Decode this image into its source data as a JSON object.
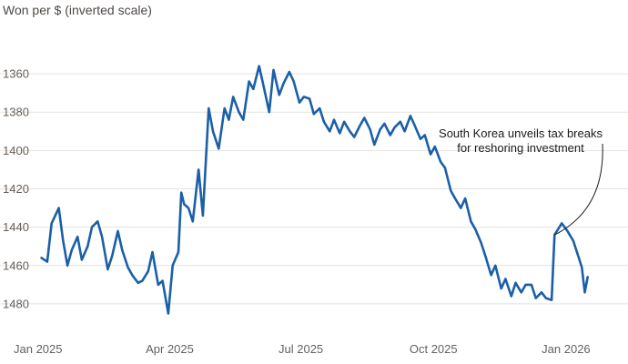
{
  "chart_data": {
    "type": "line",
    "title": "",
    "ylabel": "Won per $ (inverted scale)",
    "xlabel": "",
    "y_inverted": true,
    "ylim": [
      1350,
      1490
    ],
    "yticks": [
      1360,
      1380,
      1400,
      1420,
      1440,
      1460,
      1480
    ],
    "xlim": [
      "2025-01-01",
      "2026-01-20"
    ],
    "xticks": [
      {
        "date": "2025-01-01",
        "label": "Jan 2025"
      },
      {
        "date": "2025-04-01",
        "label": "Apr 2025"
      },
      {
        "date": "2025-07-01",
        "label": "Jul 2025"
      },
      {
        "date": "2025-10-01",
        "label": "Oct 2025"
      },
      {
        "date": "2026-01-01",
        "label": "Jan 2026"
      }
    ],
    "grid": "horizontal",
    "colors": {
      "line": "#1a5fa8",
      "grid": "#e6e2dc",
      "text": "#66605c"
    },
    "annotation": {
      "lines": [
        "South Korea unveils tax breaks",
        "for reshoring investment"
      ],
      "date": "2025-12-24",
      "value": 1444
    },
    "series": [
      {
        "x": [
          "2025-01-02",
          "2025-01-06",
          "2025-01-09",
          "2025-01-14",
          "2025-01-17",
          "2025-01-20",
          "2025-01-23",
          "2025-01-27",
          "2025-01-30",
          "2025-02-03",
          "2025-02-06",
          "2025-02-10",
          "2025-02-13",
          "2025-02-17",
          "2025-02-20",
          "2025-02-24",
          "2025-02-27",
          "2025-03-03",
          "2025-03-06",
          "2025-03-10",
          "2025-03-13",
          "2025-03-17",
          "2025-03-20",
          "2025-03-24",
          "2025-03-27",
          "2025-03-31",
          "2025-04-03",
          "2025-04-07",
          "2025-04-09",
          "2025-04-11",
          "2025-04-14",
          "2025-04-17",
          "2025-04-21",
          "2025-04-24",
          "2025-04-28",
          "2025-05-01",
          "2025-05-05",
          "2025-05-09",
          "2025-05-12",
          "2025-05-15",
          "2025-05-19",
          "2025-05-22",
          "2025-05-26",
          "2025-05-29",
          "2025-06-02",
          "2025-06-05",
          "2025-06-09",
          "2025-06-12",
          "2025-06-16",
          "2025-06-19",
          "2025-06-23",
          "2025-06-26",
          "2025-06-30",
          "2025-07-03",
          "2025-07-07",
          "2025-07-10",
          "2025-07-14",
          "2025-07-17",
          "2025-07-21",
          "2025-07-24",
          "2025-07-28",
          "2025-07-31",
          "2025-08-04",
          "2025-08-07",
          "2025-08-11",
          "2025-08-14",
          "2025-08-18",
          "2025-08-21",
          "2025-08-25",
          "2025-08-28",
          "2025-09-01",
          "2025-09-04",
          "2025-09-08",
          "2025-09-11",
          "2025-09-15",
          "2025-09-18",
          "2025-09-22",
          "2025-09-25",
          "2025-09-29",
          "2025-10-02",
          "2025-10-06",
          "2025-10-09",
          "2025-10-13",
          "2025-10-16",
          "2025-10-20",
          "2025-10-23",
          "2025-10-27",
          "2025-10-30",
          "2025-11-03",
          "2025-11-06",
          "2025-11-10",
          "2025-11-13",
          "2025-11-17",
          "2025-11-20",
          "2025-11-24",
          "2025-11-27",
          "2025-12-01",
          "2025-12-04",
          "2025-12-08",
          "2025-12-11",
          "2025-12-15",
          "2025-12-18",
          "2025-12-22",
          "2025-12-24",
          "2025-12-29",
          "2026-01-02",
          "2026-01-06",
          "2026-01-09",
          "2026-01-12",
          "2026-01-14",
          "2026-01-16"
        ],
        "y": [
          1456,
          1458,
          1438,
          1430,
          1447,
          1460,
          1452,
          1445,
          1457,
          1450,
          1440,
          1437,
          1445,
          1462,
          1455,
          1442,
          1452,
          1461,
          1465,
          1469,
          1468,
          1463,
          1453,
          1470,
          1468,
          1485,
          1460,
          1453,
          1422,
          1428,
          1430,
          1437,
          1410,
          1434,
          1378,
          1390,
          1399,
          1378,
          1384,
          1372,
          1380,
          1384,
          1364,
          1368,
          1356,
          1366,
          1380,
          1358,
          1371,
          1365,
          1359,
          1364,
          1375,
          1372,
          1373,
          1381,
          1378,
          1385,
          1390,
          1384,
          1391,
          1385,
          1390,
          1393,
          1387,
          1383,
          1389,
          1397,
          1389,
          1386,
          1392,
          1388,
          1385,
          1390,
          1382,
          1387,
          1394,
          1392,
          1402,
          1398,
          1406,
          1409,
          1421,
          1425,
          1430,
          1425,
          1437,
          1441,
          1448,
          1455,
          1465,
          1460,
          1472,
          1467,
          1476,
          1469,
          1474,
          1470,
          1470,
          1477,
          1474,
          1477,
          1478,
          1444,
          1438,
          1442,
          1447,
          1454,
          1461,
          1474,
          1466
        ]
      }
    ]
  }
}
